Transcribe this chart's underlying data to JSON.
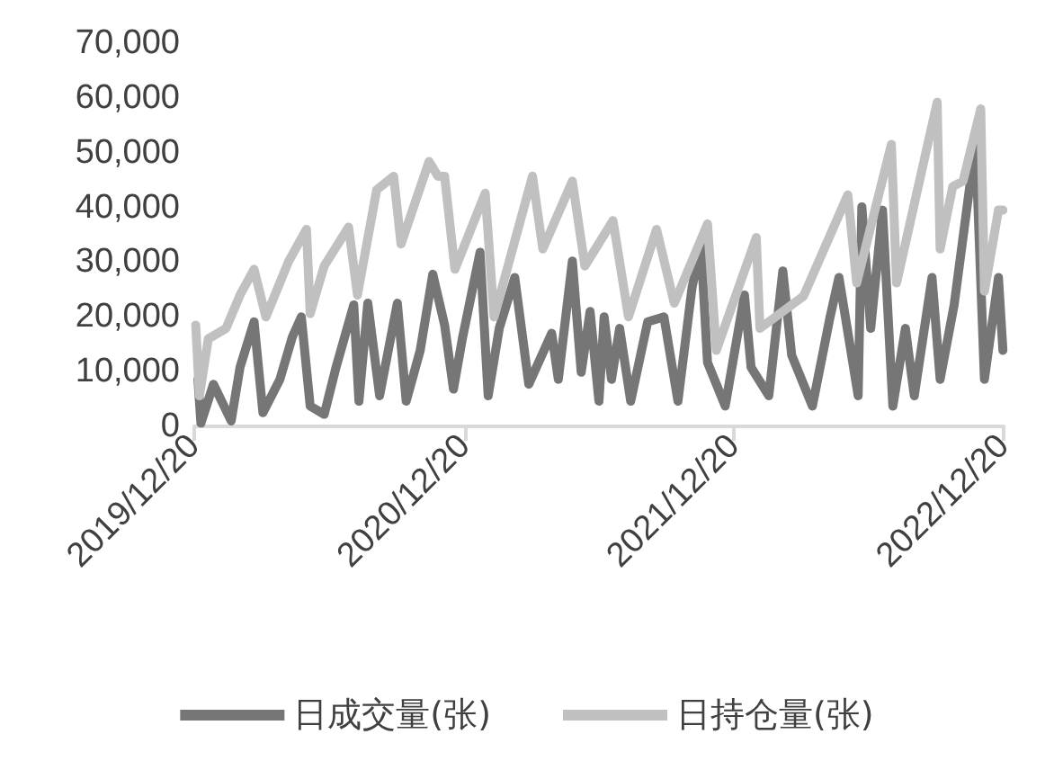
{
  "chart_data": {
    "type": "line",
    "xlim": [
      "2019-12-20",
      "2022-12-20"
    ],
    "xticks": [
      {
        "value": "2019-12-20",
        "label": "2019/12/20"
      },
      {
        "value": "2020-12-20",
        "label": "2020/12/20"
      },
      {
        "value": "2021-12-20",
        "label": "2021/12/20"
      },
      {
        "value": "2022-12-20",
        "label": "2022/12/20"
      }
    ],
    "ylim": [
      0,
      70000
    ],
    "yticks": [
      {
        "value": 0,
        "label": "0"
      },
      {
        "value": 10000,
        "label": "10,000"
      },
      {
        "value": 20000,
        "label": "20,000"
      },
      {
        "value": 30000,
        "label": "30,000"
      },
      {
        "value": 40000,
        "label": "40,000"
      },
      {
        "value": 50000,
        "label": "50,000"
      },
      {
        "value": 60000,
        "label": "60,000"
      },
      {
        "value": 70000,
        "label": "70,000"
      }
    ],
    "grid": false,
    "legend": "bottom",
    "marker": "none",
    "line_style": "solid",
    "series": [
      {
        "name": "日成交量(张)",
        "color": "#767676",
        "x": [
          "2019-12-25",
          "2019-12-29",
          "2020-01-15",
          "2020-02-08",
          "2020-02-20",
          "2020-03-10",
          "2020-03-22",
          "2020-04-14",
          "2020-05-01",
          "2020-05-13",
          "2020-05-25",
          "2020-06-13",
          "2020-06-29",
          "2020-07-23",
          "2020-07-30",
          "2020-08-11",
          "2020-08-27",
          "2020-09-20",
          "2020-10-02",
          "2020-10-21",
          "2020-11-07",
          "2020-11-23",
          "2020-12-05",
          "2020-12-17",
          "2021-01-10",
          "2021-01-21",
          "2021-02-05",
          "2021-02-26",
          "2021-03-17",
          "2021-04-17",
          "2021-04-26",
          "2021-05-15",
          "2021-05-27",
          "2021-06-08",
          "2021-06-20",
          "2021-06-27",
          "2021-07-07",
          "2021-07-18",
          "2021-08-02",
          "2021-08-25",
          "2021-09-16",
          "2021-10-05",
          "2021-10-24",
          "2021-11-05",
          "2021-11-14",
          "2021-12-08",
          "2022-01-03",
          "2022-01-12",
          "2022-02-05",
          "2022-02-24",
          "2022-03-08",
          "2022-04-05",
          "2022-04-29",
          "2022-05-11",
          "2022-06-06",
          "2022-06-11",
          "2022-06-23",
          "2022-07-09",
          "2022-07-23",
          "2022-08-09",
          "2022-08-21",
          "2022-09-14",
          "2022-09-25",
          "2022-10-14",
          "2022-11-12",
          "2022-11-24",
          "2022-12-13",
          "2022-12-19"
        ],
        "values": [
          8600,
          600,
          7700,
          1000,
          10800,
          19100,
          2500,
          8600,
          16400,
          20000,
          3700,
          2200,
          10800,
          22200,
          4600,
          22500,
          5600,
          22500,
          4600,
          13900,
          27800,
          18500,
          6800,
          16000,
          31800,
          5600,
          17900,
          27200,
          7700,
          17000,
          8600,
          30200,
          9900,
          21000,
          4600,
          20000,
          8600,
          17900,
          4600,
          19100,
          20000,
          4600,
          25300,
          33300,
          11700,
          3700,
          24000,
          10800,
          5600,
          28400,
          13000,
          3700,
          20000,
          27200,
          5600,
          40100,
          17900,
          39500,
          3700,
          17900,
          5600,
          27200,
          8600,
          22200,
          51900,
          8600,
          27200,
          13900
        ]
      },
      {
        "name": "日持仓量(张)",
        "color": "#c0c0c0",
        "x": [
          "2019-12-22",
          "2019-12-27",
          "2020-01-08",
          "2020-02-01",
          "2020-02-20",
          "2020-03-10",
          "2020-03-26",
          "2020-04-26",
          "2020-05-20",
          "2020-05-25",
          "2020-06-13",
          "2020-07-16",
          "2020-07-28",
          "2020-08-23",
          "2020-09-15",
          "2020-09-25",
          "2020-11-02",
          "2020-11-14",
          "2020-11-23",
          "2020-12-07",
          "2021-01-17",
          "2021-01-29",
          "2021-03-22",
          "2021-04-05",
          "2021-05-15",
          "2021-06-01",
          "2021-07-09",
          "2021-07-30",
          "2021-09-06",
          "2021-09-30",
          "2021-11-14",
          "2021-11-26",
          "2022-01-19",
          "2022-01-24",
          "2022-03-24",
          "2022-05-23",
          "2022-06-04",
          "2022-07-21",
          "2022-07-28",
          "2022-09-21",
          "2022-09-25",
          "2022-10-12",
          "2022-10-26",
          "2022-11-19",
          "2022-11-24",
          "2022-12-13",
          "2022-12-19"
        ],
        "values": [
          18500,
          5600,
          16000,
          17900,
          24000,
          28700,
          20000,
          30200,
          36000,
          20600,
          29300,
          36400,
          24000,
          43200,
          45700,
          33300,
          48400,
          45700,
          45700,
          28700,
          42600,
          20000,
          45700,
          32400,
          44800,
          29300,
          37600,
          20000,
          36000,
          22500,
          37000,
          13900,
          34500,
          17900,
          23800,
          42300,
          26200,
          51500,
          26200,
          59200,
          32400,
          43800,
          44800,
          58000,
          24700,
          39500,
          39500
        ]
      }
    ]
  }
}
